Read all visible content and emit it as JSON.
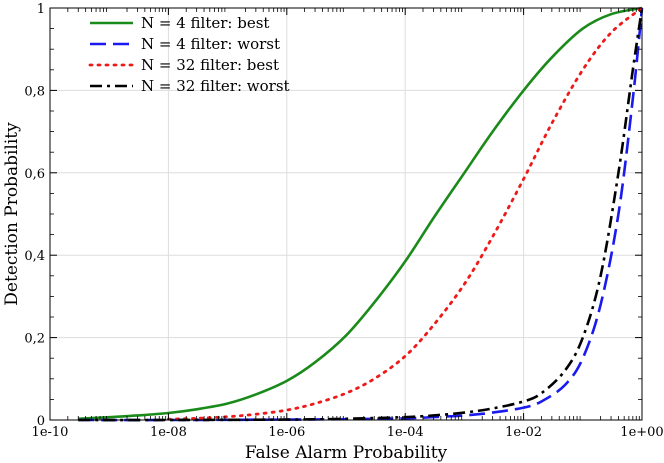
{
  "chart_data": {
    "type": "line",
    "title": "",
    "xlabel": "False Alarm Probability",
    "ylabel": "Detection Probability",
    "x_scale": "log10",
    "xlim": [
      1e-10,
      1
    ],
    "ylim": [
      0,
      1
    ],
    "x_ticks": [
      {
        "value": 1e-10,
        "label": "1e-10"
      },
      {
        "value": 1e-08,
        "label": "1e-08"
      },
      {
        "value": 1e-06,
        "label": "1e-06"
      },
      {
        "value": 0.0001,
        "label": "1e-04"
      },
      {
        "value": 0.01,
        "label": "1e-02"
      },
      {
        "value": 1,
        "label": "1e+00"
      }
    ],
    "y_ticks": [
      {
        "value": 0,
        "label": "0"
      },
      {
        "value": 0.2,
        "label": "0,2"
      },
      {
        "value": 0.4,
        "label": "0,4"
      },
      {
        "value": 0.6,
        "label": "0,6"
      },
      {
        "value": 0.8,
        "label": "0,8"
      },
      {
        "value": 1,
        "label": "1"
      }
    ],
    "grid": true,
    "legend_position": "top-left",
    "series": [
      {
        "name": "N = 4 filter: best",
        "color": "#1a8a1a",
        "dash": "solid",
        "x": [
          3e-10,
          1e-09,
          3e-09,
          1e-08,
          3e-08,
          1e-07,
          3e-07,
          1e-06,
          3e-06,
          1e-05,
          3e-05,
          0.0001,
          0.0003,
          0.001,
          0.003,
          0.01,
          0.03,
          0.1,
          0.3,
          1
        ],
        "y": [
          0.003,
          0.007,
          0.011,
          0.017,
          0.026,
          0.04,
          0.062,
          0.095,
          0.14,
          0.205,
          0.285,
          0.385,
          0.49,
          0.6,
          0.7,
          0.8,
          0.88,
          0.95,
          0.985,
          1.0
        ]
      },
      {
        "name": "N = 4 filter: worst",
        "color": "#1a1aee",
        "dash": "dashed",
        "x": [
          3e-10,
          1e-08,
          1e-06,
          1e-05,
          0.0001,
          0.0003,
          0.001,
          0.003,
          0.01,
          0.02,
          0.05,
          0.1,
          0.2,
          0.4,
          0.7,
          1
        ],
        "y": [
          0.0,
          0.0,
          0.001,
          0.002,
          0.004,
          0.007,
          0.011,
          0.018,
          0.03,
          0.045,
          0.085,
          0.15,
          0.28,
          0.5,
          0.78,
          1.0
        ]
      },
      {
        "name": "N = 32 filter: best",
        "color": "#ee1a1a",
        "dash": "dotted",
        "x": [
          1e-08,
          3e-08,
          1e-07,
          3e-07,
          1e-06,
          3e-06,
          1e-05,
          3e-05,
          0.0001,
          0.0003,
          0.001,
          0.003,
          0.01,
          0.03,
          0.1,
          0.3,
          1
        ],
        "y": [
          0.002,
          0.004,
          0.008,
          0.014,
          0.024,
          0.04,
          0.065,
          0.1,
          0.155,
          0.23,
          0.33,
          0.445,
          0.585,
          0.72,
          0.85,
          0.94,
          1.0
        ]
      },
      {
        "name": "N = 32 filter: worst",
        "color": "#000000",
        "dash": "dashdot",
        "x": [
          3e-10,
          1e-08,
          1e-06,
          1e-05,
          0.0001,
          0.0003,
          0.001,
          0.003,
          0.01,
          0.02,
          0.05,
          0.1,
          0.2,
          0.4,
          0.7,
          1
        ],
        "y": [
          0.0,
          0.0,
          0.001,
          0.003,
          0.007,
          0.011,
          0.018,
          0.028,
          0.045,
          0.065,
          0.12,
          0.2,
          0.35,
          0.6,
          0.85,
          1.0
        ]
      }
    ]
  }
}
